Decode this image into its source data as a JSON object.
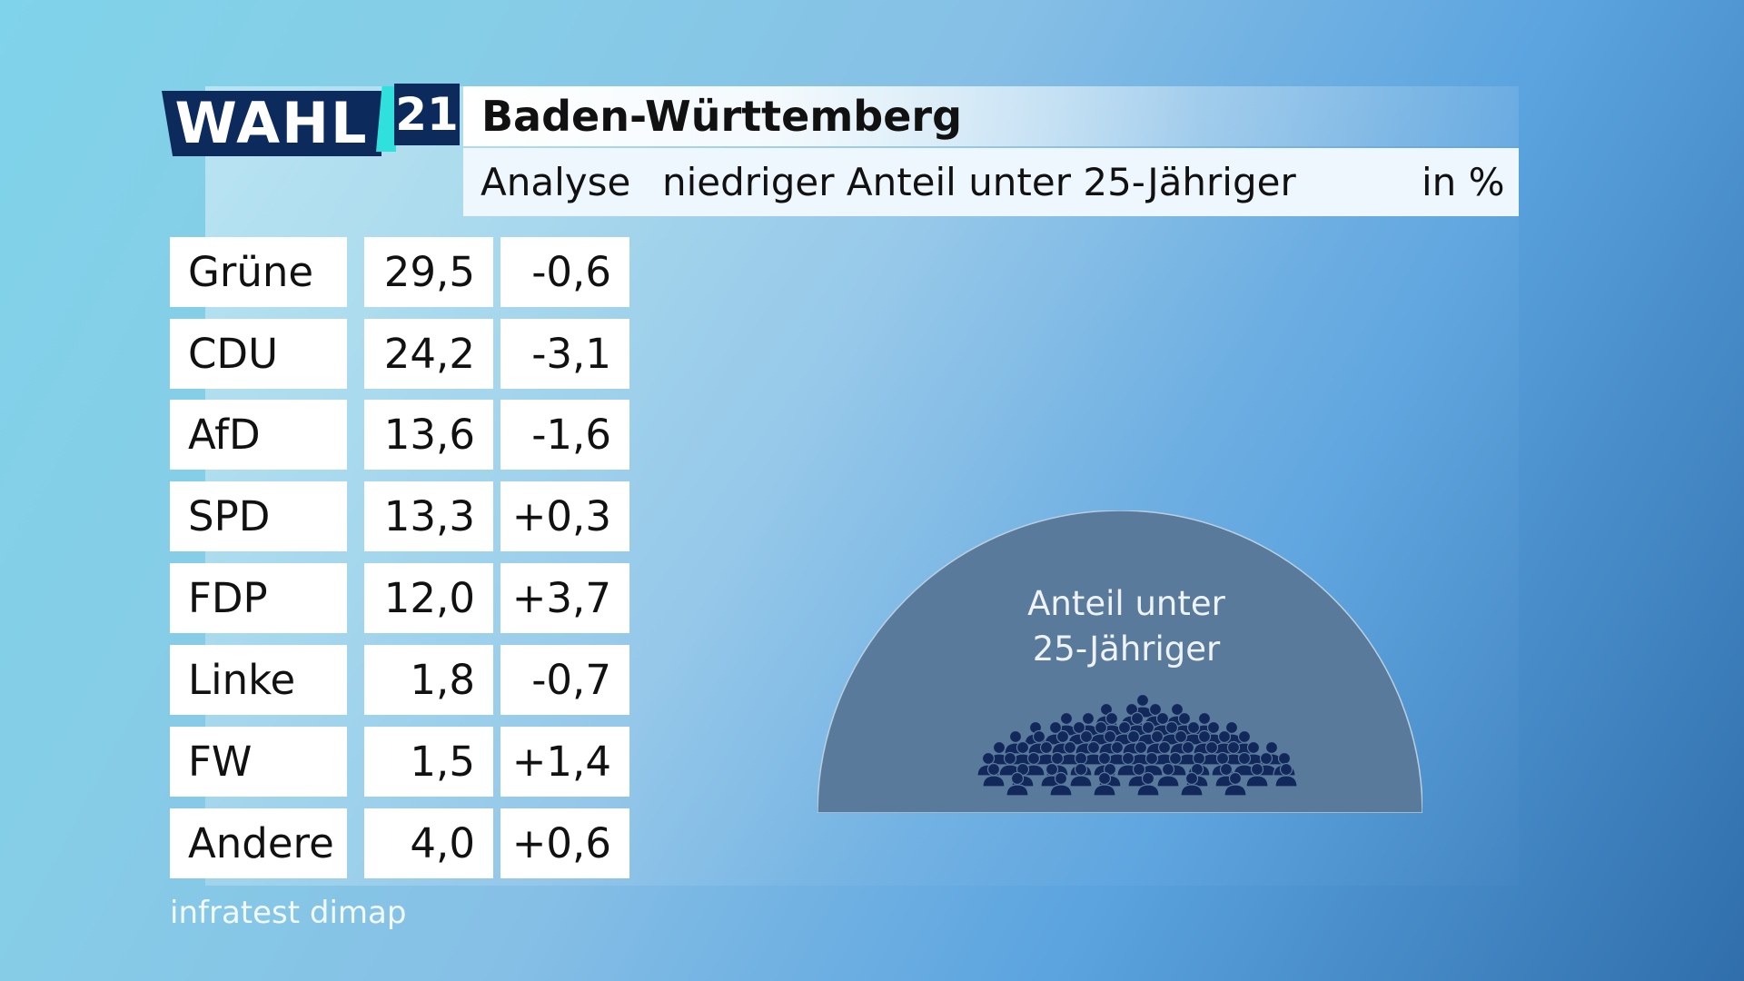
{
  "brand": {
    "wahl": "WAHL",
    "year": "21"
  },
  "header": {
    "title": "Baden-Württemberg",
    "subtitle_left": "Analyse",
    "subtitle_mid": "niedriger Anteil unter 25-Jähriger",
    "subtitle_unit": "in %"
  },
  "dome": {
    "label_line1": "Anteil unter",
    "label_line2": "25-Jähriger"
  },
  "source": "infratest dimap",
  "colors": {
    "dark_navy": "#0d2a5c",
    "accent_cyan": "#2fe0dc",
    "dome_fill": "#5a7a9c",
    "people_icon": "#12285a"
  },
  "chart_data": {
    "type": "table",
    "title": "Baden-Württemberg",
    "subtitle": "Analyse niedriger Anteil unter 25-Jähriger",
    "unit": "in %",
    "rows": [
      {
        "party": "Grüne",
        "share": "29,5",
        "diff": "-0,6"
      },
      {
        "party": "CDU",
        "share": "24,2",
        "diff": "-3,1"
      },
      {
        "party": "AfD",
        "share": "13,6",
        "diff": "-1,6"
      },
      {
        "party": "SPD",
        "share": "13,3",
        "diff": "+0,3"
      },
      {
        "party": "FDP",
        "share": "12,0",
        "diff": "+3,7"
      },
      {
        "party": "Linke",
        "share": "1,8",
        "diff": "-0,7"
      },
      {
        "party": "FW",
        "share": "1,5",
        "diff": "+1,4"
      },
      {
        "party": "Andere",
        "share": "4,0",
        "diff": "+0,6"
      }
    ]
  }
}
